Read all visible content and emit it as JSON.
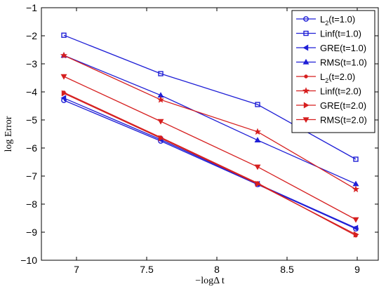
{
  "chart_data": {
    "type": "line",
    "xlabel": "−logΔ t",
    "ylabel": "log Error",
    "xlim": [
      6.75,
      9.15
    ],
    "ylim": [
      -10,
      -1
    ],
    "xticks": [
      "7",
      "7.5",
      "8",
      "8.5",
      "9"
    ],
    "xtick_values": [
      7,
      7.5,
      8,
      8.5,
      9
    ],
    "yticks": [
      "−1",
      "−2",
      "−3",
      "−4",
      "−5",
      "−6",
      "−7",
      "−8",
      "−9",
      "−10"
    ],
    "ytick_values": [
      -1,
      -2,
      -3,
      -4,
      -5,
      -6,
      -7,
      -8,
      -9,
      -10
    ],
    "grid": false,
    "legend_position": "top-right",
    "x": [
      6.91,
      7.6,
      8.29,
      8.99
    ],
    "series": [
      {
        "name": "L2(t=1.0)",
        "label_main": "L",
        "label_sub": "2",
        "label_rest": "(t=1.0)",
        "color": "#1f1fd6",
        "marker": "circle",
        "values": [
          -4.3,
          -5.75,
          -7.3,
          -8.88
        ]
      },
      {
        "name": "Linf(t=1.0)",
        "label_main": "Linf(t=1.0)",
        "label_sub": "",
        "label_rest": "",
        "color": "#1f1fd6",
        "marker": "square",
        "values": [
          -1.98,
          -3.35,
          -4.45,
          -6.4
        ]
      },
      {
        "name": "GRE(t=1.0)",
        "label_main": "GRE(t=1.0)",
        "label_sub": "",
        "label_rest": "",
        "color": "#1f1fd6",
        "marker": "triangle-left",
        "values": [
          -4.22,
          -5.7,
          -7.28,
          -8.85
        ]
      },
      {
        "name": "RMS(t=1.0)",
        "label_main": "RMS(t=1.0)",
        "label_sub": "",
        "label_rest": "",
        "color": "#1f1fd6",
        "marker": "triangle-up",
        "values": [
          -2.7,
          -4.12,
          -5.72,
          -7.28
        ]
      },
      {
        "name": "L2(t=2.0)",
        "label_main": "L",
        "label_sub": "2",
        "label_rest": "(t=2.0)",
        "color": "#d61f1f",
        "marker": "dot",
        "values": [
          -4.02,
          -5.62,
          -7.25,
          -9.12
        ]
      },
      {
        "name": "Linf(t=2.0)",
        "label_main": "Linf(t=2.0)",
        "label_sub": "",
        "label_rest": "",
        "color": "#d61f1f",
        "marker": "star",
        "values": [
          -2.7,
          -4.28,
          -5.42,
          -7.47
        ]
      },
      {
        "name": "GRE(t=2.0)",
        "label_main": "GRE(t=2.0)",
        "label_sub": "",
        "label_rest": "",
        "color": "#d61f1f",
        "marker": "triangle-right",
        "values": [
          -4.05,
          -5.65,
          -7.28,
          -9.08
        ]
      },
      {
        "name": "RMS(t=2.0)",
        "label_main": "RMS(t=2.0)",
        "label_sub": "",
        "label_rest": "",
        "color": "#d61f1f",
        "marker": "triangle-down",
        "values": [
          -3.45,
          -5.05,
          -6.67,
          -8.55
        ]
      }
    ]
  }
}
